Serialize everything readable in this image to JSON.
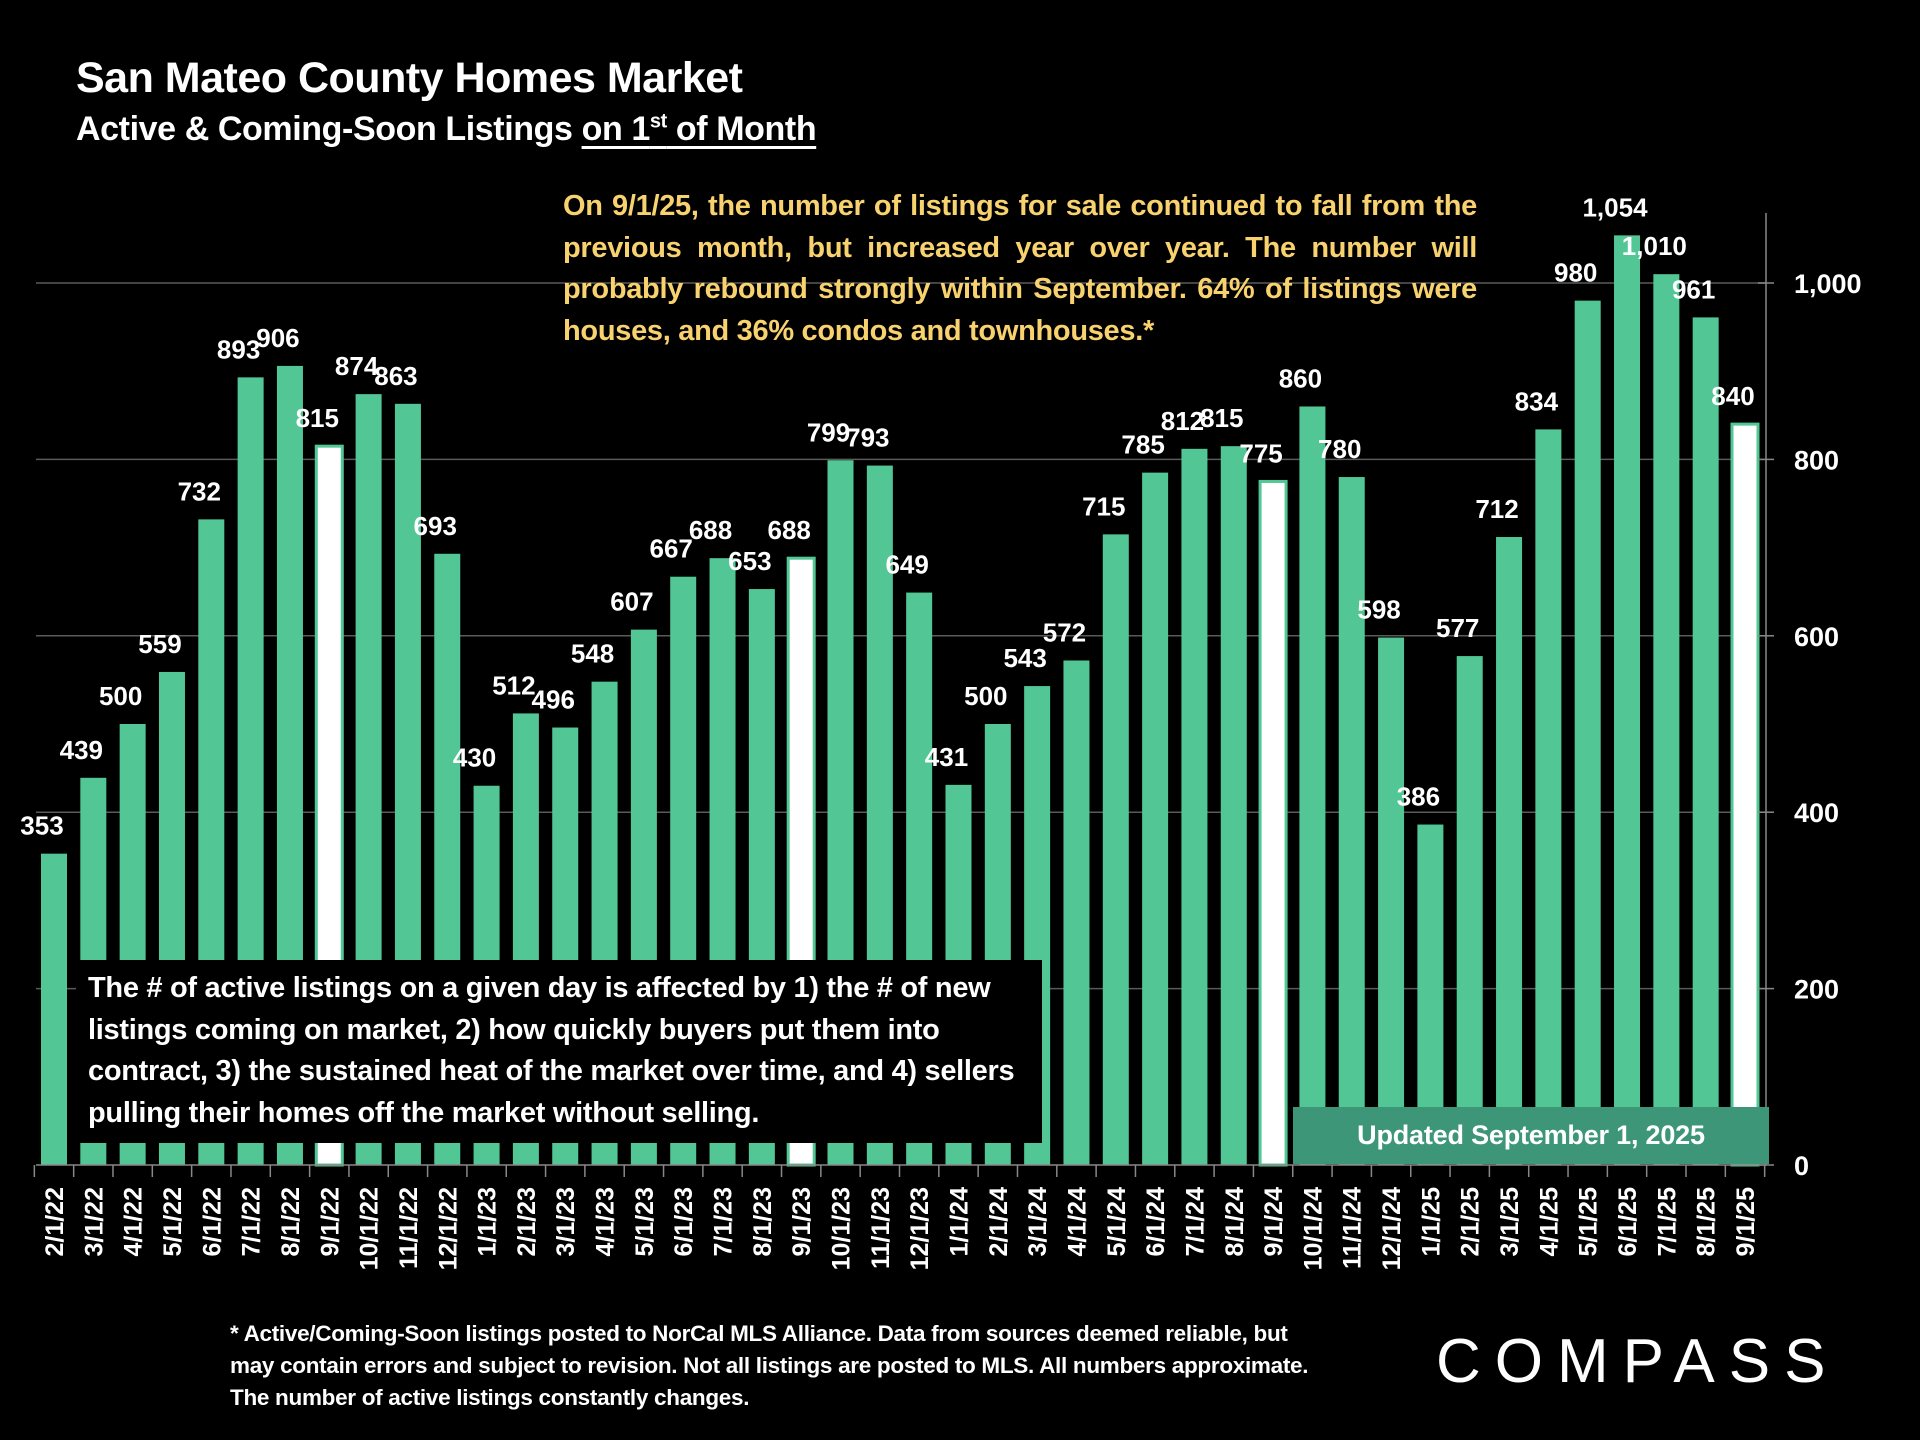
{
  "header": {
    "title": "San Mateo County Homes Market",
    "subtitle_prefix": "Active & Coming-Soon Listings ",
    "subtitle_underlined_pre": "on 1",
    "subtitle_sup": "st",
    "subtitle_underlined_post": " of Month"
  },
  "commentary": "On 9/1/25, the number of listings for sale continued to fall from the previous month, but increased year over year. The number will probably rebound strongly within September. 64% of listings were houses, and 36% condos and townhouses.*",
  "note": "The # of active listings on a given day is affected by 1) the # of new listings coming on market, 2) how quickly buyers put them into contract, 3) the sustained heat of the market over time, and 4) sellers pulling their homes off the market without selling.",
  "update_label": "Updated September 1, 2025",
  "footnote": "* Active/Coming-Soon listings posted to NorCal MLS Alliance.  Data from sources deemed reliable, but may contain errors and subject to revision.  Not all listings are posted to MLS. All numbers approximate. The number of active listings constantly changes.",
  "logo": "COMPASS",
  "colors": {
    "bar": "#52C795",
    "highlight_bar": "#FFFFFF",
    "update_box": "#3E9679",
    "commentary": "#F7D26E"
  },
  "chart_data": {
    "type": "bar",
    "title": "San Mateo County Homes Market — Active & Coming-Soon Listings on 1st of Month",
    "xlabel": "",
    "ylabel": "",
    "ylim": [
      0,
      1080
    ],
    "yticks": [
      0,
      200,
      400,
      600,
      800,
      1000
    ],
    "ytick_labels": [
      "0",
      "200",
      "400",
      "600",
      "800",
      "1,000"
    ],
    "y_axis_side": "right",
    "grid": true,
    "categories": [
      "2/1/22",
      "3/1/22",
      "4/1/22",
      "5/1/22",
      "6/1/22",
      "7/1/22",
      "8/1/22",
      "9/1/22",
      "10/1/22",
      "11/1/22",
      "12/1/22",
      "1/1/23",
      "2/1/23",
      "3/1/23",
      "4/1/23",
      "5/1/23",
      "6/1/23",
      "7/1/23",
      "8/1/23",
      "9/1/23",
      "10/1/23",
      "11/1/23",
      "12/1/23",
      "1/1/24",
      "2/1/24",
      "3/1/24",
      "4/1/24",
      "5/1/24",
      "6/1/24",
      "7/1/24",
      "8/1/24",
      "9/1/24",
      "10/1/24",
      "11/1/24",
      "12/1/24",
      "1/1/25",
      "2/1/25",
      "3/1/25",
      "4/1/25",
      "5/1/25",
      "6/1/25",
      "7/1/25",
      "8/1/25",
      "9/1/25"
    ],
    "values": [
      353,
      439,
      500,
      559,
      732,
      893,
      906,
      815,
      874,
      863,
      693,
      430,
      512,
      496,
      548,
      607,
      667,
      688,
      653,
      688,
      799,
      793,
      649,
      431,
      500,
      543,
      572,
      715,
      785,
      812,
      815,
      775,
      860,
      780,
      598,
      386,
      577,
      712,
      834,
      980,
      1054,
      1010,
      961,
      840
    ],
    "value_labels": [
      "353",
      "439",
      "500",
      "559",
      "732",
      "893",
      "906",
      "815",
      "874",
      "863",
      "693",
      "430",
      "512",
      "496",
      "548",
      "607",
      "667",
      "688",
      "653",
      "688",
      "799",
      "793",
      "649",
      "431",
      "500",
      "543",
      "572",
      "715",
      "785",
      "812",
      "815",
      "775",
      "860",
      "780",
      "598",
      "386",
      "577",
      "712",
      "834",
      "980",
      "1,054",
      "1,010",
      "961",
      "840"
    ],
    "highlighted": [
      "9/1/22",
      "9/1/23",
      "9/1/24",
      "9/1/25"
    ]
  }
}
